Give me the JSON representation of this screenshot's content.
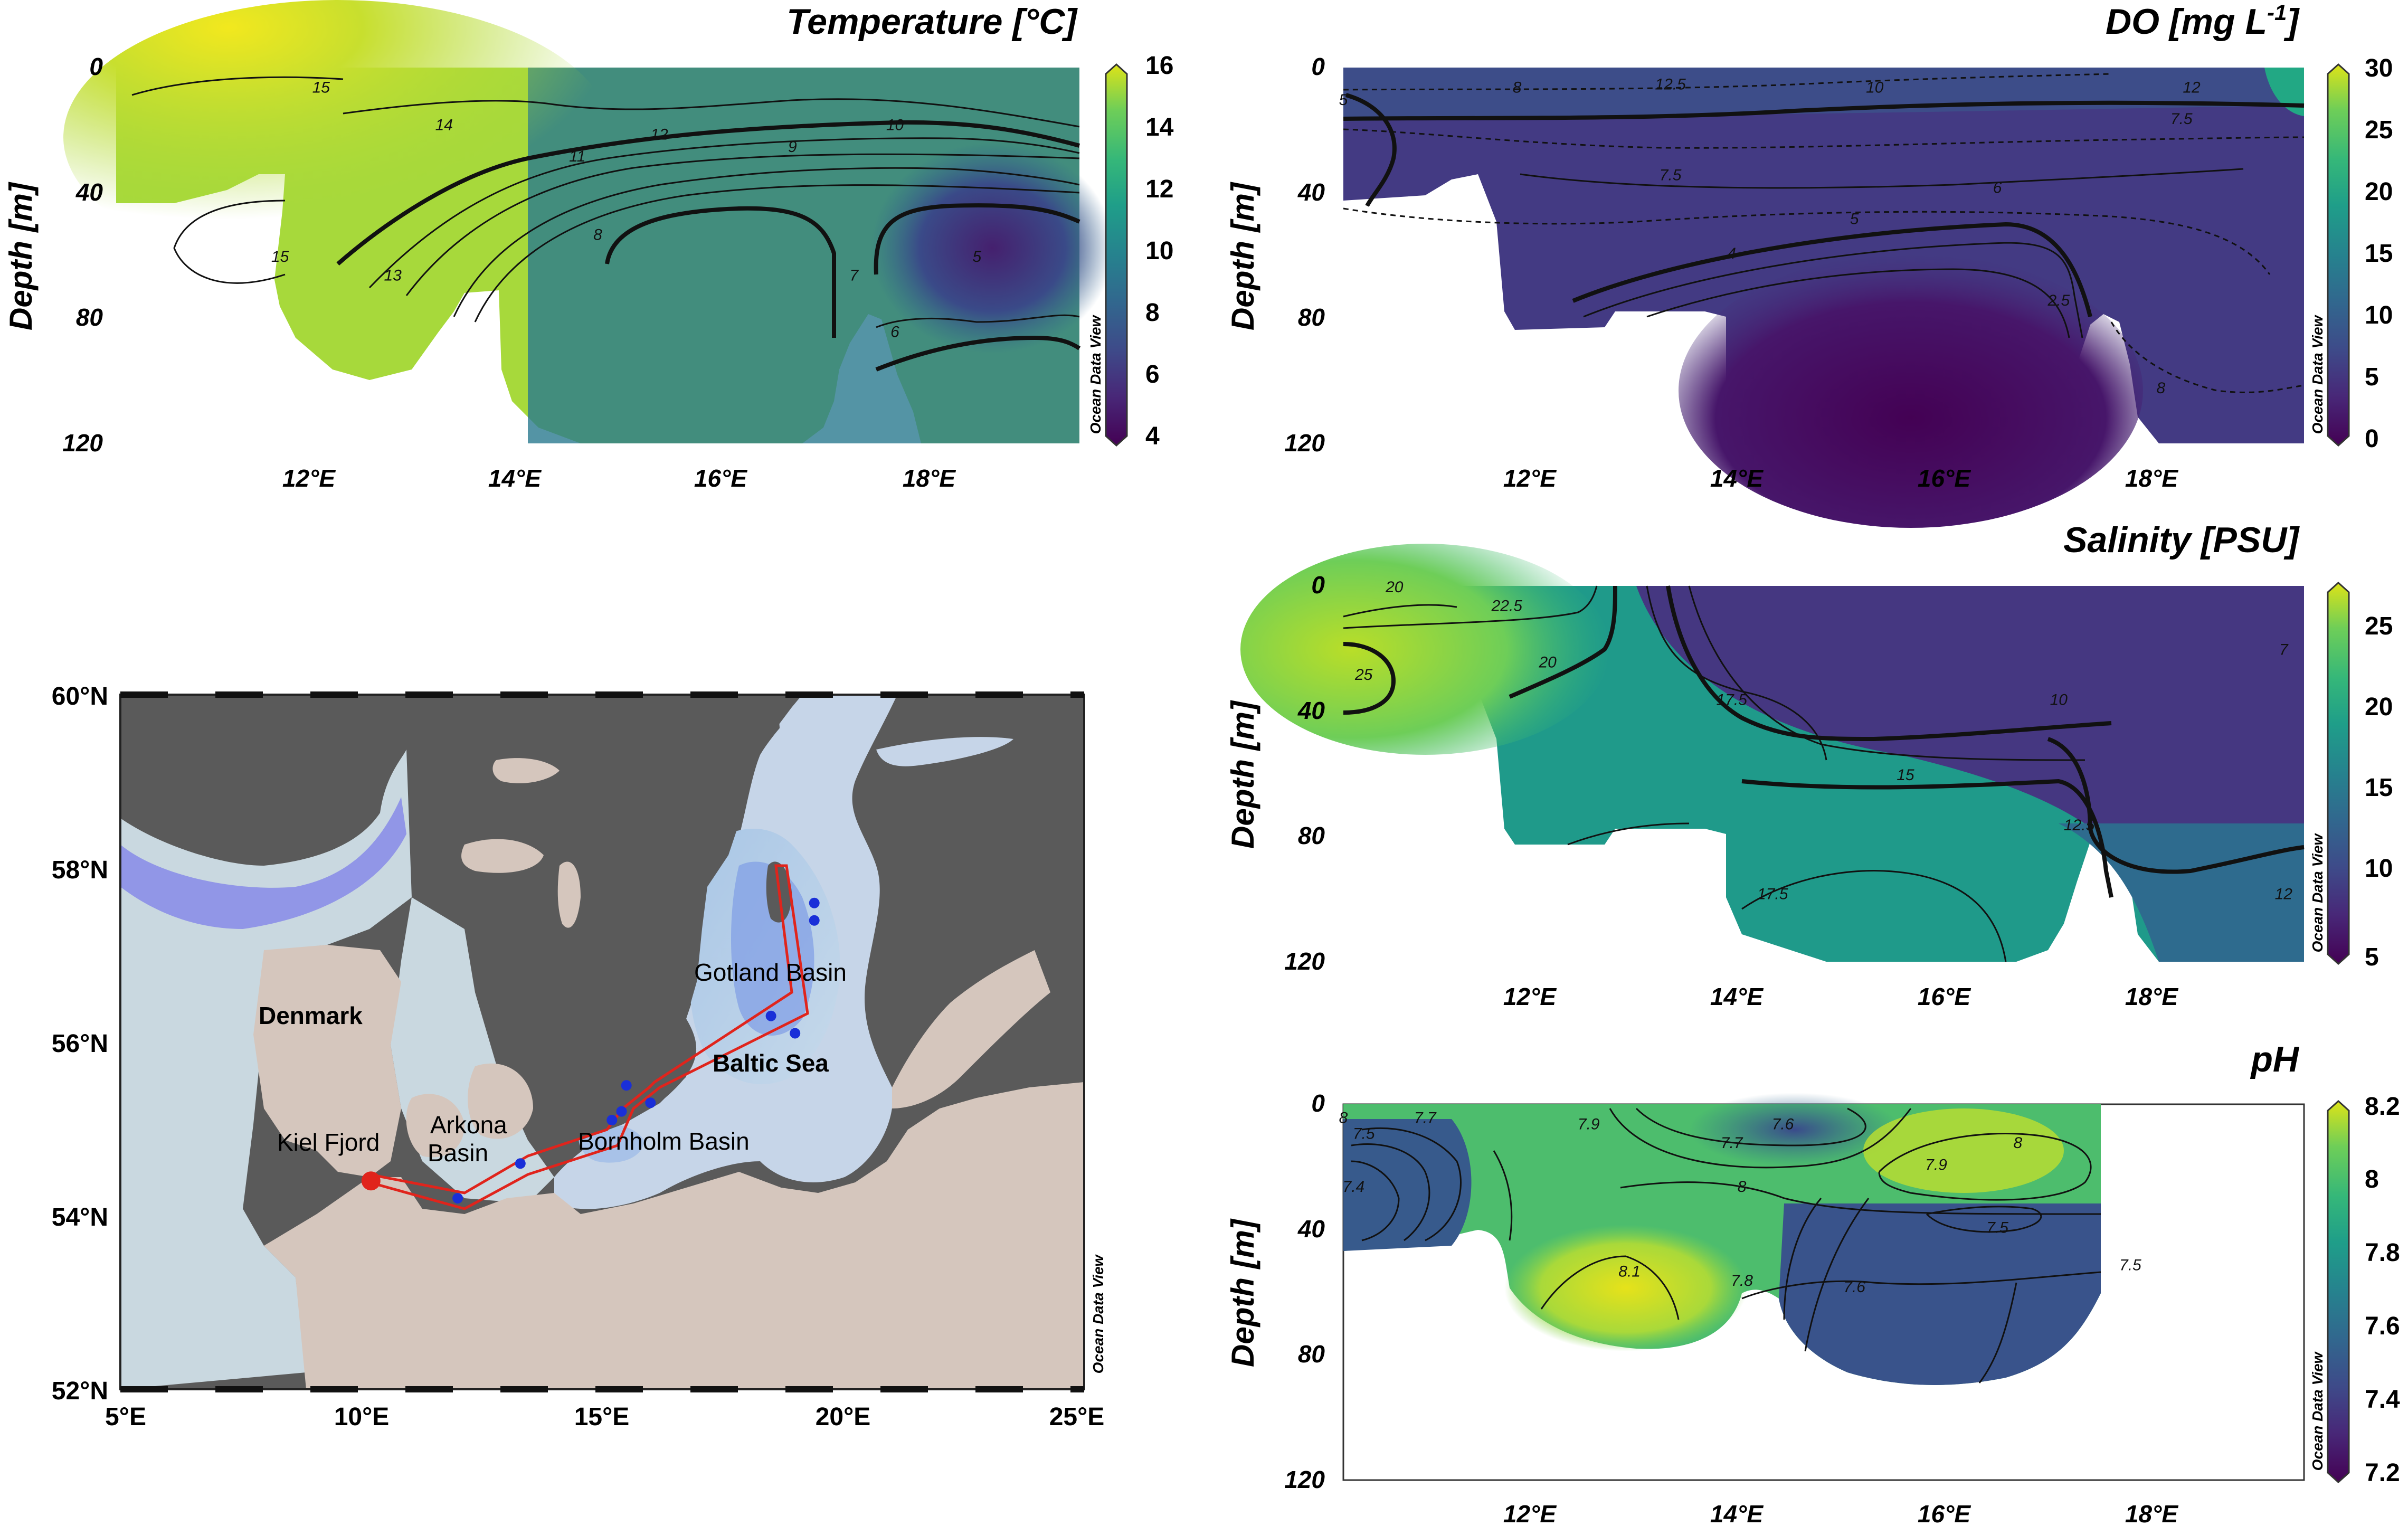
{
  "watermark": "Ocean Data View",
  "sections": {
    "temperature": {
      "title": "Temperature [°C]",
      "ylabel": "Depth [m]",
      "colorbar": {
        "ticks": [
          "16",
          "14",
          "12",
          "10",
          "8",
          "6",
          "4"
        ],
        "min": 4,
        "max": 16,
        "palette": "viridis"
      },
      "contour_labels": [
        {
          "text": "15",
          "lon": 12.2,
          "depth": 8
        },
        {
          "text": "15",
          "lon": 11.8,
          "depth": 62
        },
        {
          "text": "14",
          "lon": 13.4,
          "depth": 20
        },
        {
          "text": "13",
          "lon": 12.9,
          "depth": 68
        },
        {
          "text": "12",
          "lon": 15.5,
          "depth": 23
        },
        {
          "text": "11",
          "lon": 14.7,
          "depth": 30
        },
        {
          "text": "10",
          "lon": 17.8,
          "depth": 20
        },
        {
          "text": "9",
          "lon": 16.8,
          "depth": 27
        },
        {
          "text": "8",
          "lon": 14.9,
          "depth": 55
        },
        {
          "text": "7",
          "lon": 17.4,
          "depth": 68
        },
        {
          "text": "6",
          "lon": 17.8,
          "depth": 86
        },
        {
          "text": "5",
          "lon": 18.6,
          "depth": 62
        }
      ]
    },
    "do": {
      "title": "DO [mg L-1]",
      "title_main": "DO [mg L",
      "title_sup": "-1",
      "title_end": "]",
      "ylabel": "Depth [m]",
      "colorbar": {
        "ticks": [
          "30",
          "25",
          "20",
          "15",
          "10",
          "5",
          "0"
        ],
        "min": 0,
        "max": 30,
        "palette": "viridis"
      },
      "contour_labels": [
        {
          "text": "5",
          "lon": 10.2,
          "depth": 12
        },
        {
          "text": "8",
          "lon": 11.9,
          "depth": 8
        },
        {
          "text": "12.5",
          "lon": 13.4,
          "depth": 7
        },
        {
          "text": "10",
          "lon": 15.4,
          "depth": 8
        },
        {
          "text": "12",
          "lon": 18.5,
          "depth": 8
        },
        {
          "text": "7.5",
          "lon": 13.4,
          "depth": 36
        },
        {
          "text": "7.5",
          "lon": 18.4,
          "depth": 18
        },
        {
          "text": "6",
          "lon": 16.6,
          "depth": 40
        },
        {
          "text": "5",
          "lon": 15.2,
          "depth": 50
        },
        {
          "text": "4",
          "lon": 14.0,
          "depth": 61
        },
        {
          "text": "2.5",
          "lon": 17.2,
          "depth": 76
        },
        {
          "text": "8",
          "lon": 18.2,
          "depth": 104
        }
      ]
    },
    "salinity": {
      "title": "Salinity [PSU]",
      "ylabel": "Depth [m]",
      "colorbar": {
        "ticks": [
          "25",
          "20",
          "15",
          "10",
          "5"
        ],
        "min": 5,
        "max": 27.5,
        "palette": "viridis"
      },
      "contour_labels": [
        {
          "text": "20",
          "lon": 10.7,
          "depth": 2
        },
        {
          "text": "22.5",
          "lon": 11.8,
          "depth": 8
        },
        {
          "text": "25",
          "lon": 10.4,
          "depth": 30
        },
        {
          "text": "20",
          "lon": 12.2,
          "depth": 26
        },
        {
          "text": "17.5",
          "lon": 14.0,
          "depth": 38
        },
        {
          "text": "10",
          "lon": 17.2,
          "depth": 38
        },
        {
          "text": "15",
          "lon": 15.7,
          "depth": 62
        },
        {
          "text": "12.5",
          "lon": 17.4,
          "depth": 78
        },
        {
          "text": "17.5",
          "lon": 14.4,
          "depth": 100
        },
        {
          "text": "12",
          "lon": 19.4,
          "depth": 100
        },
        {
          "text": "7",
          "lon": 19.4,
          "depth": 22
        }
      ]
    },
    "ph": {
      "title": "pH",
      "ylabel": "Depth [m]",
      "colorbar": {
        "ticks": [
          "8.2",
          "8",
          "7.8",
          "7.6",
          "7.4",
          "7.2"
        ],
        "min": 7.2,
        "max": 8.2,
        "palette": "viridis"
      },
      "contour_labels": [
        {
          "text": "8",
          "lon": 10.2,
          "depth": 6
        },
        {
          "text": "7.7",
          "lon": 11.0,
          "depth": 6
        },
        {
          "text": "7.5",
          "lon": 10.4,
          "depth": 11
        },
        {
          "text": "7.4",
          "lon": 10.3,
          "depth": 28
        },
        {
          "text": "7.9",
          "lon": 12.6,
          "depth": 8
        },
        {
          "text": "7.6",
          "lon": 14.5,
          "depth": 8
        },
        {
          "text": "7.7",
          "lon": 14.0,
          "depth": 14
        },
        {
          "text": "8",
          "lon": 14.1,
          "depth": 28
        },
        {
          "text": "8",
          "lon": 16.8,
          "depth": 14
        },
        {
          "text": "7.9",
          "lon": 16.0,
          "depth": 21
        },
        {
          "text": "7.5",
          "lon": 16.6,
          "depth": 41
        },
        {
          "text": "7.6",
          "lon": 15.2,
          "depth": 60
        },
        {
          "text": "7.8",
          "lon": 14.1,
          "depth": 58
        },
        {
          "text": "8.1",
          "lon": 13.0,
          "depth": 55
        },
        {
          "text": "7.5",
          "lon": 17.9,
          "depth": 53
        }
      ]
    }
  },
  "map": {
    "lat_labels": [
      "60°N",
      "58°N",
      "56°N",
      "54°N",
      "52°N"
    ],
    "lon_labels": [
      "5°E",
      "10°E",
      "15°E",
      "20°E",
      "25°E"
    ],
    "labels": {
      "denmark": "Denmark",
      "baltic": "Baltic Sea",
      "gotland": "Gotland Basin",
      "kiel": "Kiel Fjord",
      "arkona1": "Arkona",
      "arkona2": "Basin",
      "bornholm": "Bornholm Basin"
    }
  },
  "chart_data": [
    {
      "type": "heatmap",
      "title": "Temperature [°C]",
      "ylabel": "Depth [m]",
      "x_ticks": [
        "12°E",
        "14°E",
        "16°E",
        "18°E"
      ],
      "y_ticks": [
        "0",
        "40",
        "80",
        "120"
      ],
      "xlim": [
        10.2,
        19.6
      ],
      "ylim": [
        0,
        120
      ],
      "colorbar": {
        "min": 4,
        "max": 16,
        "ticks": [
          16,
          14,
          12,
          10,
          8,
          6,
          4
        ]
      },
      "contours": [
        15,
        14,
        13,
        12,
        11,
        10,
        9,
        8,
        7,
        6,
        5
      ]
    },
    {
      "type": "heatmap",
      "title": "DO [mg L-1]",
      "ylabel": "Depth [m]",
      "x_ticks": [
        "12°E",
        "14°E",
        "16°E",
        "18°E"
      ],
      "y_ticks": [
        "0",
        "40",
        "80",
        "120"
      ],
      "xlim": [
        10.2,
        19.6
      ],
      "ylim": [
        0,
        120
      ],
      "colorbar": {
        "min": 0,
        "max": 30,
        "ticks": [
          30,
          25,
          20,
          15,
          10,
          5,
          0
        ]
      },
      "contours": [
        12.5,
        12,
        10,
        8,
        7.5,
        6,
        5,
        4,
        2.5
      ]
    },
    {
      "type": "heatmap",
      "title": "Salinity [PSU]",
      "ylabel": "Depth [m]",
      "x_ticks": [
        "12°E",
        "14°E",
        "16°E",
        "18°E"
      ],
      "y_ticks": [
        "0",
        "40",
        "80",
        "120"
      ],
      "xlim": [
        10.2,
        19.6
      ],
      "ylim": [
        0,
        120
      ],
      "colorbar": {
        "min": 5,
        "max": 27.5,
        "ticks": [
          25,
          20,
          15,
          10,
          5
        ]
      },
      "contours": [
        25,
        22.5,
        20,
        17.5,
        15,
        12.5,
        12,
        10,
        7
      ]
    },
    {
      "type": "heatmap",
      "title": "pH",
      "ylabel": "Depth [m]",
      "x_ticks": [
        "12°E",
        "14°E",
        "16°E",
        "18°E"
      ],
      "y_ticks": [
        "0",
        "40",
        "80",
        "120"
      ],
      "xlim": [
        10.2,
        19.6
      ],
      "ylim": [
        0,
        120
      ],
      "colorbar": {
        "min": 7.2,
        "max": 8.2,
        "ticks": [
          8.2,
          8,
          7.8,
          7.6,
          7.4,
          7.2
        ]
      },
      "contours": [
        8.1,
        8,
        7.9,
        7.8,
        7.7,
        7.6,
        7.5,
        7.4
      ]
    },
    {
      "type": "map",
      "lat_ticks": [
        "60°N",
        "58°N",
        "56°N",
        "54°N",
        "52°N"
      ],
      "lon_ticks": [
        "5°E",
        "10°E",
        "15°E",
        "20°E",
        "25°E"
      ],
      "xlim": [
        5,
        25
      ],
      "ylim": [
        52,
        60
      ],
      "stations": [
        {
          "lon": 10.2,
          "lat": 54.4,
          "kind": "start"
        },
        {
          "lon": 12.0,
          "lat": 54.2
        },
        {
          "lon": 13.3,
          "lat": 54.6
        },
        {
          "lon": 15.2,
          "lat": 55.1
        },
        {
          "lon": 15.4,
          "lat": 55.2
        },
        {
          "lon": 15.5,
          "lat": 55.5
        },
        {
          "lon": 16.0,
          "lat": 55.3
        },
        {
          "lon": 18.5,
          "lat": 56.3
        },
        {
          "lon": 19.0,
          "lat": 56.1
        },
        {
          "lon": 19.4,
          "lat": 57.4
        },
        {
          "lon": 19.4,
          "lat": 57.6
        }
      ]
    }
  ]
}
